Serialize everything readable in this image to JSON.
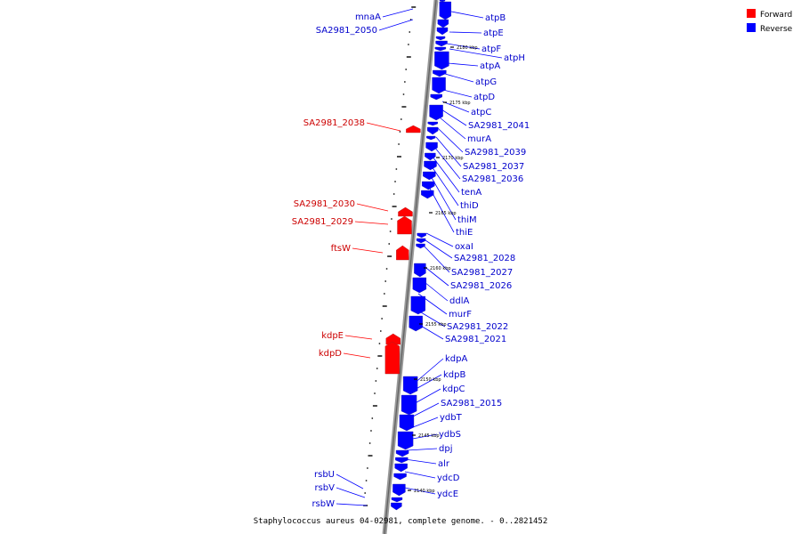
{
  "caption": "Staphylococcus aureus 04-02981, complete genome. - 0..2821452",
  "legend": [
    {
      "label": "Forward",
      "color": "#ff0000"
    },
    {
      "label": "Reverse",
      "color": "#0000ff"
    }
  ],
  "colors": {
    "forward": "#ff0000",
    "reverse": "#0000ff",
    "backbone": "#888888"
  },
  "scale_labels": [
    "2180 kbp",
    "2175 kbp",
    "2170 kbp",
    "2165 kbp",
    "2160 kbp",
    "2155 kbp",
    "2150 kbp",
    "2145 kbp",
    "2140 kbp"
  ],
  "genes_forward": [
    "SA2981_2038",
    "SA2981_2030",
    "SA2981_2029",
    "ftsW",
    "kdpE",
    "kdpD"
  ],
  "genes_reverse_left": [
    "mnaA",
    "SA2981_2050",
    "rsbU",
    "rsbV",
    "rsbW"
  ],
  "genes_reverse_right": [
    "atpB",
    "atpE",
    "atpF",
    "atpH",
    "atpA",
    "atpG",
    "atpD",
    "atpC",
    "SA2981_2041",
    "murA",
    "SA2981_2039",
    "SA2981_2037",
    "SA2981_2036",
    "tenA",
    "thiD",
    "thiM",
    "thiE",
    "oxaI",
    "SA2981_2028",
    "SA2981_2027",
    "SA2981_2026",
    "ddlA",
    "murF",
    "SA2981_2022",
    "SA2981_2021",
    "kdpA",
    "kdpB",
    "kdpC",
    "SA2981_2015",
    "ydbT",
    "ydbS",
    "dpj",
    "alr",
    "ydcD",
    "ydcE"
  ]
}
